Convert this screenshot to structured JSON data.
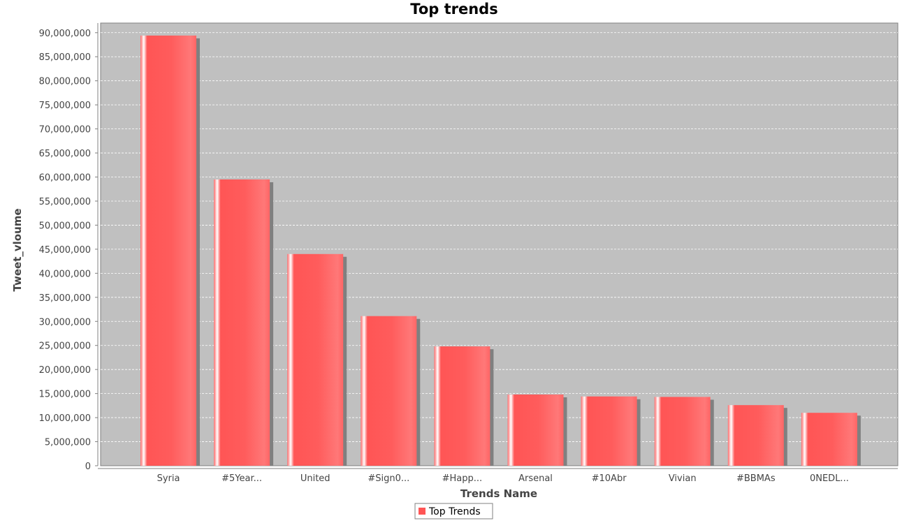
{
  "chart_data": {
    "type": "bar",
    "title": "Top trends",
    "xlabel": "Trends Name",
    "ylabel": "Tweet_vloume",
    "categories": [
      "Syria",
      "#5Year...",
      "United",
      "#Sign0...",
      "#Happ...",
      "Arsenal",
      "#10Abr",
      "Vivian",
      "#BBMAs",
      "0NEDL..."
    ],
    "series": [
      {
        "name": "Top Trends",
        "color": "#ff5555",
        "values": [
          89400000,
          59500000,
          44000000,
          31100000,
          24800000,
          14800000,
          14400000,
          14300000,
          12600000,
          11000000
        ]
      }
    ],
    "ylim": [
      0,
      92000000
    ],
    "yticks": [
      0,
      5000000,
      10000000,
      15000000,
      20000000,
      25000000,
      30000000,
      35000000,
      40000000,
      45000000,
      50000000,
      55000000,
      60000000,
      65000000,
      70000000,
      75000000,
      80000000,
      85000000,
      90000000
    ],
    "ytick_labels": [
      "0",
      "5,000,000",
      "10,000,000",
      "15,000,000",
      "20,000,000",
      "25,000,000",
      "30,000,000",
      "35,000,000",
      "40,000,000",
      "45,000,000",
      "50,000,000",
      "55,000,000",
      "60,000,000",
      "65,000,000",
      "70,000,000",
      "75,000,000",
      "80,000,000",
      "85,000,000",
      "90,000,000"
    ],
    "grid": true,
    "legend_position": "bottom",
    "plot_background": "#c0c0c0"
  }
}
